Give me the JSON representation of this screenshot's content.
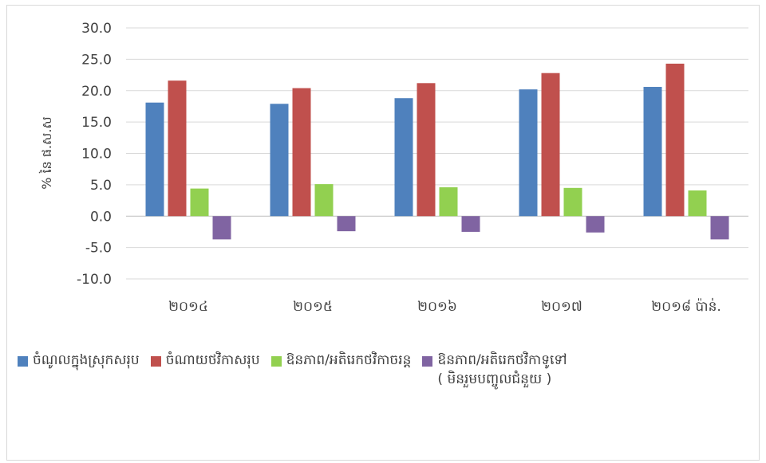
{
  "chart_data": {
    "type": "bar",
    "ylabel": "% នៃ ផ.ស.ស",
    "ylim": [
      -10,
      30
    ],
    "yticks": [
      "30.0",
      "25.0",
      "20.0",
      "15.0",
      "10.0",
      "5.0",
      "0.0",
      "-5.0",
      "-10.0"
    ],
    "ytick_values": [
      30,
      25,
      20,
      15,
      10,
      5,
      0,
      -5,
      -10
    ],
    "grid": true,
    "legend_position": "bottom",
    "categories": [
      "២០១៤",
      "២០១៥",
      "២០១៦",
      "២០១៧",
      "២០១៨ ប៉ាន់."
    ],
    "series": [
      {
        "name": "ចំណូលក្នុងស្រុកសរុប",
        "color": "#4f81bd",
        "values": [
          18.1,
          17.9,
          18.8,
          20.2,
          20.6
        ]
      },
      {
        "name": "ចំណាយថវិកាសរុប",
        "color": "#c0504d",
        "values": [
          21.6,
          20.4,
          21.2,
          22.8,
          24.3
        ]
      },
      {
        "name": "ឱនភាព/អតិរេកថវិកាចរន្ត",
        "color": "#92d050",
        "values": [
          4.4,
          5.1,
          4.6,
          4.5,
          4.1
        ]
      },
      {
        "name": "ឱនភាព/អតិរេកថវិកាទូទៅ",
        "name_sub": "( មិនរួមបញ្ចូលជំនួយ )",
        "color": "#8064a2",
        "values": [
          -3.7,
          -2.4,
          -2.5,
          -2.6,
          -3.7
        ]
      }
    ]
  }
}
